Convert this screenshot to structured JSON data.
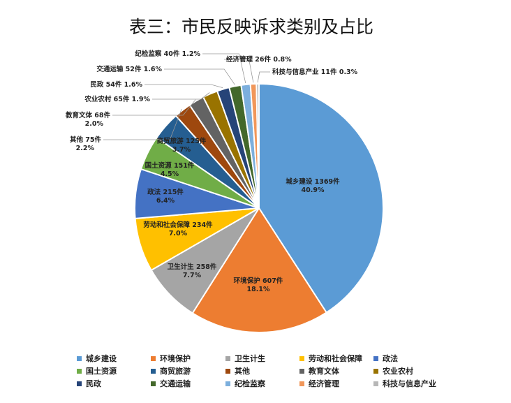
{
  "chart_data": {
    "type": "pie",
    "title": "表三：市民反映诉求类别及占比",
    "unit": "件",
    "categories": [
      "城乡建设",
      "环境保护",
      "卫生计生",
      "劳动和社会保障",
      "政法",
      "国土资源",
      "商贸旅游",
      "其他",
      "教育文体",
      "农业农村",
      "民政",
      "交通运输",
      "纪检监察",
      "经济管理",
      "科技与信息产业"
    ],
    "values": [
      1369,
      607,
      258,
      234,
      215,
      151,
      125,
      75,
      68,
      65,
      54,
      52,
      40,
      26,
      11
    ],
    "percent_labels": [
      "40.9%",
      "18.1%",
      "7.7%",
      "7.0%",
      "6.4%",
      "4.5%",
      "3.7%",
      "2.2%",
      "2.0%",
      "1.9%",
      "1.6%",
      "1.6%",
      "1.2%",
      "0.8%",
      "0.3%"
    ],
    "colors": [
      "#5B9BD5",
      "#ED7D31",
      "#A5A5A5",
      "#FFC000",
      "#4472C4",
      "#70AD47",
      "#255E91",
      "#9E480E",
      "#636363",
      "#997300",
      "#264478",
      "#43682B",
      "#7CAFDD",
      "#F1975A",
      "#B7B7B7"
    ],
    "legend_position": "bottom"
  }
}
